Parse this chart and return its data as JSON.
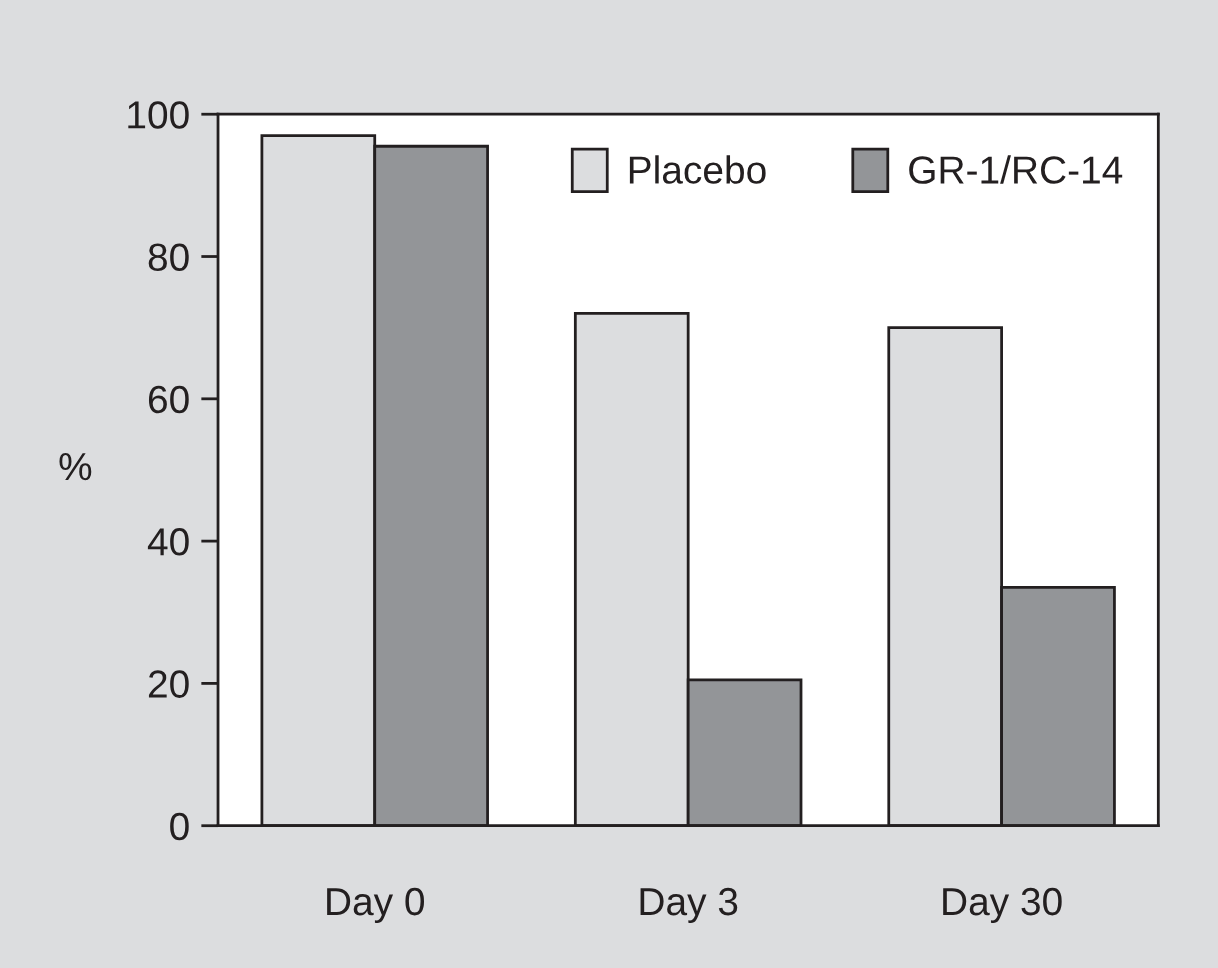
{
  "chart_data": {
    "type": "bar",
    "ylabel": "%",
    "categories": [
      "Day 0",
      "Day 3",
      "Day 30"
    ],
    "series": [
      {
        "name": "Placebo",
        "color": "#dcdddf",
        "values": [
          97,
          72,
          70
        ]
      },
      {
        "name": "GR-1/RC-14",
        "color": "#939598",
        "values": [
          95.5,
          20.5,
          33.5
        ]
      }
    ],
    "ylim": [
      0,
      100
    ],
    "yticks": [
      0,
      20,
      40,
      60,
      80,
      100
    ],
    "grid": false,
    "legend": "top right"
  }
}
